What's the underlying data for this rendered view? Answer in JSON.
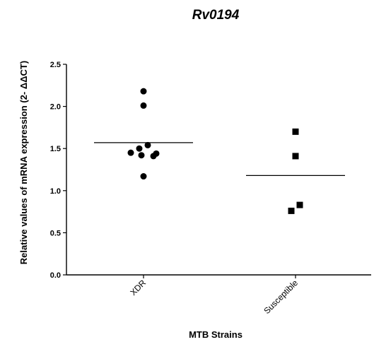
{
  "chart_data": {
    "type": "scatter",
    "title": "Rv0194",
    "xlabel": "MTB Strains",
    "ylabel": "Relative values of mRNA expression (2- ΔΔCT)",
    "ylim": [
      0,
      2.5
    ],
    "yticks": [
      "0.0",
      "0.5",
      "1.0",
      "1.5",
      "2.0",
      "2.5"
    ],
    "categories": [
      "XDR",
      "Susceptible"
    ],
    "grid": false,
    "series": [
      {
        "category": "XDR",
        "marker": "circle",
        "mean": 1.57,
        "values": [
          2.18,
          2.01,
          1.54,
          1.5,
          1.45,
          1.44,
          1.42,
          1.41,
          1.17
        ]
      },
      {
        "category": "Susceptible",
        "marker": "square",
        "mean": 1.18,
        "values": [
          1.7,
          1.41,
          0.83,
          0.76
        ]
      }
    ]
  }
}
